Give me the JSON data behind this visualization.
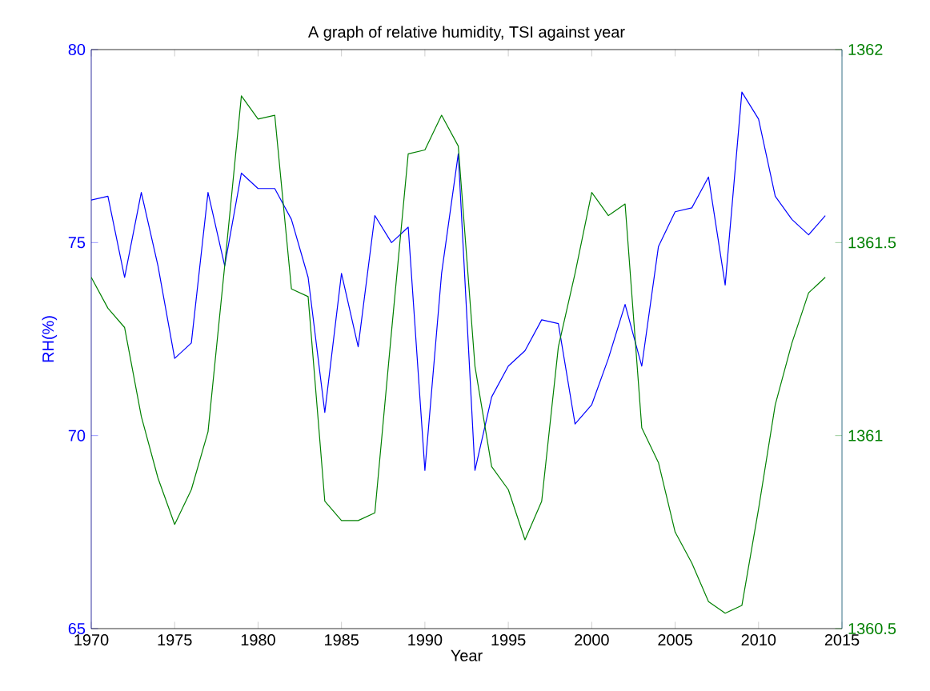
{
  "chart_data": {
    "type": "line",
    "title": "A graph of relative humidity, TSI against year",
    "xlabel": "Year",
    "ylabel": "RH(%)",
    "x": [
      1970,
      1971,
      1972,
      1973,
      1974,
      1975,
      1976,
      1977,
      1978,
      1979,
      1980,
      1981,
      1982,
      1983,
      1984,
      1985,
      1986,
      1987,
      1988,
      1989,
      1990,
      1991,
      1992,
      1993,
      1994,
      1995,
      1996,
      1997,
      1998,
      1999,
      2000,
      2001,
      2002,
      2003,
      2004,
      2005,
      2006,
      2007,
      2008,
      2009,
      2010,
      2011,
      2012,
      2013,
      2014
    ],
    "series": [
      {
        "color": "#0000ff",
        "values": [
          76.1,
          76.2,
          74.1,
          76.3,
          74.4,
          72.0,
          72.4,
          76.3,
          74.4,
          76.8,
          76.4,
          76.4,
          75.6,
          74.1,
          70.6,
          74.2,
          72.3,
          75.7,
          75.0,
          75.4,
          69.1,
          74.2,
          77.3,
          69.1,
          71.0,
          71.8,
          72.2,
          73.0,
          72.9,
          70.3,
          70.8,
          72.0,
          73.4,
          71.8,
          74.9,
          75.8,
          75.9,
          76.7,
          73.9,
          78.9,
          78.2,
          76.2,
          75.6,
          75.2,
          75.7
        ]
      },
      {
        "color": "#008000",
        "axis": "y2",
        "values": [
          1361.41,
          1361.33,
          1361.28,
          1361.05,
          1360.89,
          1360.77,
          1360.86,
          1361.01,
          1361.44,
          1361.88,
          1361.82,
          1361.83,
          1361.38,
          1361.36,
          1360.83,
          1360.78,
          1360.78,
          1360.8,
          1361.27,
          1361.73,
          1361.74,
          1361.83,
          1361.75,
          1361.18,
          1360.92,
          1360.86,
          1360.73,
          1360.83,
          1361.23,
          1361.42,
          1361.63,
          1361.57,
          1361.6,
          1361.02,
          1360.93,
          1360.75,
          1360.67,
          1360.57,
          1360.54,
          1360.56,
          1360.81,
          1361.08,
          1361.24,
          1361.37,
          1361.41
        ]
      }
    ],
    "xlim": [
      1970,
      2015
    ],
    "xticks": [
      1970,
      1975,
      1980,
      1985,
      1990,
      1995,
      2000,
      2005,
      2010,
      2015
    ],
    "ylim": [
      65,
      80
    ],
    "yticks": [
      65,
      70,
      75,
      80
    ],
    "y2lim": [
      1360.5,
      1362
    ],
    "y2ticks": [
      1360.5,
      1361,
      1361.5,
      1362
    ],
    "grid": false,
    "marker": "none",
    "line_style": "solid"
  }
}
